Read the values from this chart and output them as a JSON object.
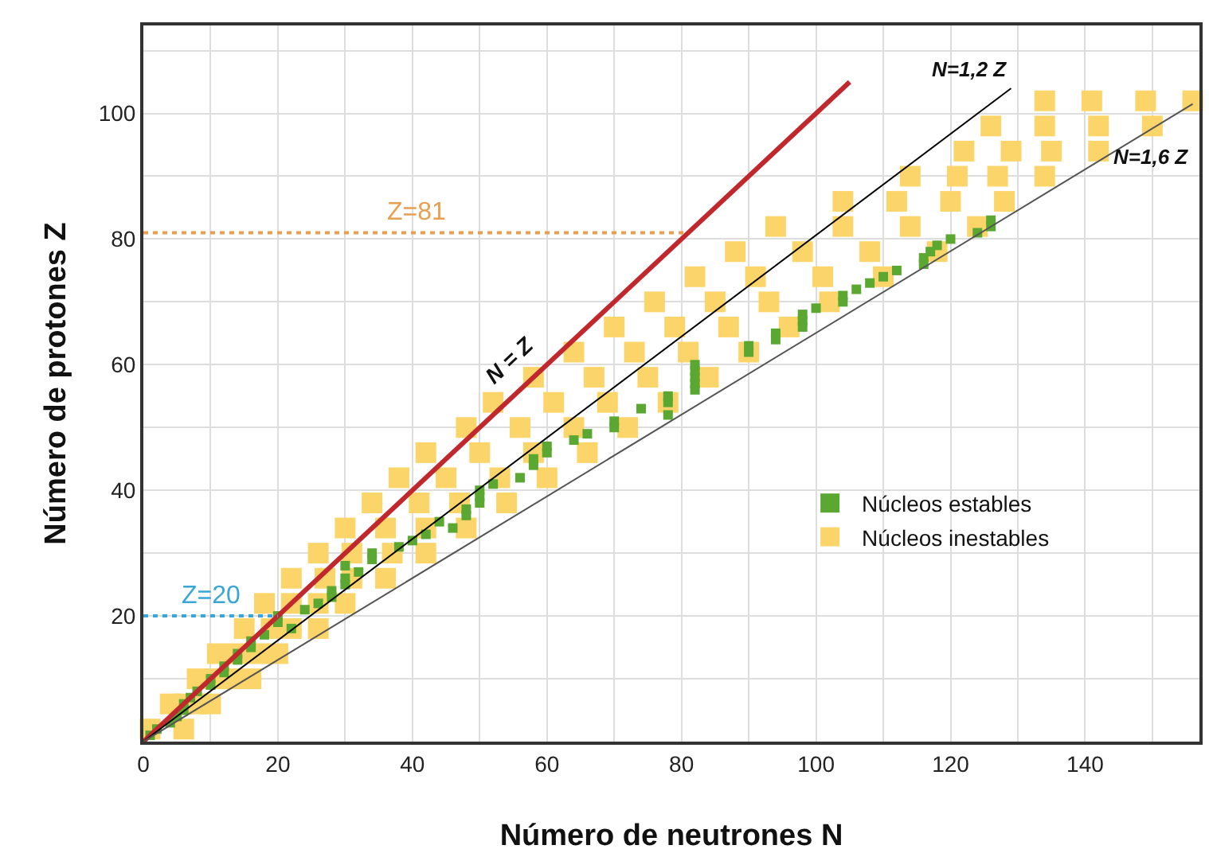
{
  "chart_data": {
    "type": "scatter",
    "xlabel": "Número de neutrones N",
    "ylabel": "Número de protones Z",
    "xlim": [
      0,
      157
    ],
    "ylim": [
      0,
      114
    ],
    "xticks": [
      0,
      {
        "value": 10,
        "label": null
      },
      20,
      {
        "value": 30,
        "label": null
      },
      40,
      {
        "value": 50,
        "label": null
      },
      60,
      {
        "value": 70,
        "label": null
      },
      80,
      {
        "value": 90,
        "label": null
      },
      100,
      {
        "value": 110,
        "label": null
      },
      120,
      {
        "value": 130,
        "label": null
      },
      140,
      {
        "value": 150,
        "label": null
      }
    ],
    "yticks": [
      {
        "value": 0,
        "label": null
      },
      {
        "value": 10,
        "label": null
      },
      20,
      {
        "value": 30,
        "label": null
      },
      40,
      {
        "value": 50,
        "label": null
      },
      60,
      {
        "value": 70,
        "label": null
      },
      80,
      {
        "value": 90,
        "label": null
      },
      100,
      {
        "value": 110,
        "label": null
      }
    ],
    "grid": true,
    "legend": "bottom right",
    "marker": "square",
    "series": [
      {
        "name": "Núcleos inestables",
        "color": "#fcd56a",
        "x": [
          1,
          6,
          4,
          6,
          8,
          10,
          8,
          11,
          13,
          16,
          11,
          14,
          17,
          20,
          15,
          19,
          22,
          26,
          18,
          22,
          26,
          30,
          22,
          27,
          31,
          36,
          26,
          31,
          37,
          42,
          30,
          36,
          42,
          48,
          34,
          41,
          47,
          54,
          38,
          45,
          53,
          60,
          42,
          50,
          58,
          66,
          48,
          56,
          64,
          72,
          52,
          61,
          69,
          78,
          58,
          67,
          75,
          84,
          64,
          73,
          81,
          90,
          70,
          79,
          87,
          96,
          76,
          85,
          93,
          102,
          82,
          91,
          101,
          110,
          88,
          98,
          108,
          118,
          94,
          104,
          114,
          124,
          104,
          112,
          120,
          128,
          114,
          121,
          127,
          134,
          122,
          129,
          135,
          142,
          126,
          134,
          142,
          150,
          134,
          141,
          149,
          156
        ],
        "values": [
          2,
          2,
          6,
          6,
          6,
          6,
          10,
          10,
          10,
          10,
          14,
          14,
          14,
          14,
          18,
          18,
          18,
          18,
          22,
          22,
          22,
          22,
          26,
          26,
          26,
          26,
          30,
          30,
          30,
          30,
          34,
          34,
          34,
          34,
          38,
          38,
          38,
          38,
          42,
          42,
          42,
          42,
          46,
          46,
          46,
          46,
          50,
          50,
          50,
          50,
          54,
          54,
          54,
          54,
          58,
          58,
          58,
          58,
          62,
          62,
          62,
          62,
          66,
          66,
          66,
          66,
          70,
          70,
          70,
          70,
          74,
          74,
          74,
          74,
          78,
          78,
          78,
          78,
          82,
          82,
          82,
          82,
          86,
          86,
          86,
          86,
          90,
          90,
          90,
          90,
          94,
          94,
          94,
          94,
          98,
          98,
          98,
          98,
          102,
          102,
          102,
          102
        ]
      },
      {
        "name": "Núcleos estables",
        "color": "#5aa832",
        "x": [
          1,
          2,
          4,
          5,
          6,
          6,
          7,
          8,
          10,
          10,
          12,
          12,
          14,
          14,
          16,
          16,
          18,
          22,
          20,
          20,
          24,
          26,
          28,
          28,
          30,
          30,
          32,
          30,
          34,
          34,
          38,
          40,
          42,
          46,
          44,
          48,
          48,
          50,
          50,
          50,
          52,
          56,
          58,
          58,
          60,
          60,
          64,
          66,
          70,
          70,
          78,
          74,
          78,
          78,
          82,
          82,
          82,
          82,
          82,
          90,
          90,
          94,
          94,
          98,
          98,
          98,
          100,
          104,
          104,
          106,
          108,
          110,
          112,
          116,
          116,
          117,
          118,
          120,
          124,
          126,
          126
        ],
        "values": [
          1,
          2,
          3,
          4,
          5,
          6,
          7,
          8,
          9,
          10,
          11,
          12,
          13,
          14,
          15,
          16,
          17,
          18,
          19,
          20,
          21,
          22,
          23,
          24,
          25,
          26,
          27,
          28,
          29,
          30,
          31,
          32,
          33,
          34,
          35,
          36,
          37,
          38,
          39,
          40,
          41,
          42,
          44,
          45,
          46,
          47,
          48,
          49,
          50,
          51,
          52,
          53,
          54,
          55,
          56,
          57,
          58,
          59,
          60,
          62,
          63,
          64,
          65,
          66,
          67,
          68,
          69,
          70,
          71,
          72,
          73,
          74,
          75,
          76,
          77,
          78,
          79,
          80,
          81,
          82,
          83
        ]
      },
      {
        "name": "N = Z",
        "type": "line",
        "marker": "none",
        "color": "#c0282d",
        "x": [
          0,
          105
        ],
        "values": [
          0,
          105
        ]
      },
      {
        "name": "N=1,2 Z",
        "type": "line",
        "marker": "none",
        "color": "#000000",
        "x": [
          0,
          129
        ],
        "values": [
          0,
          104
        ]
      },
      {
        "name": "N=1,6 Z",
        "type": "line",
        "marker": "none",
        "color": "#555555",
        "x": [
          0,
          156
        ],
        "values": [
          0,
          101.5
        ]
      },
      {
        "name": "Z=81",
        "type": "line",
        "marker": "none",
        "color": "#e8a050",
        "line_style": "dotted",
        "x": [
          0,
          81
        ],
        "values": [
          81,
          81
        ]
      },
      {
        "name": "Z=20",
        "type": "line",
        "marker": "none",
        "color": "#3aa6d8",
        "line_style": "dotted",
        "x": [
          0,
          20
        ],
        "values": [
          20,
          20
        ]
      }
    ]
  }
}
